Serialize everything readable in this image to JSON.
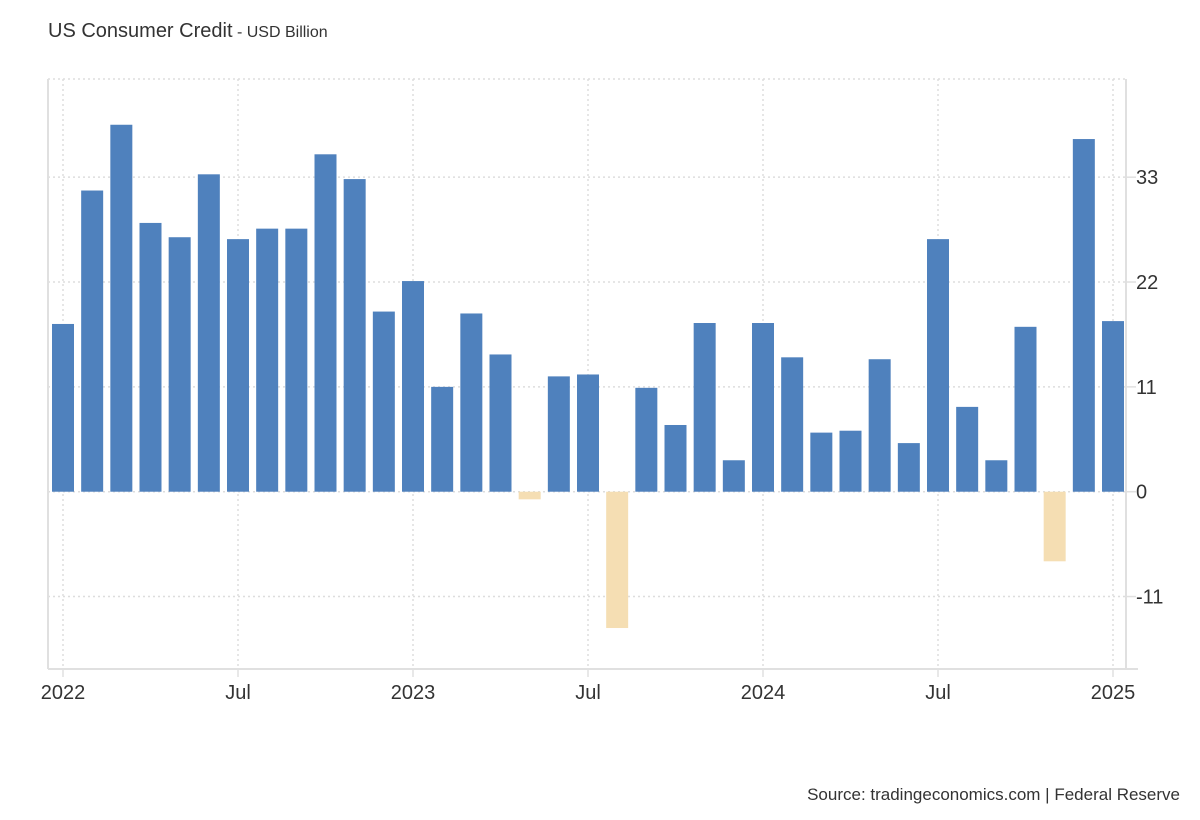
{
  "chart_data": {
    "type": "bar",
    "title": "US Consumer Credit",
    "subtitle": "USD Billion",
    "x_start": "2022-01",
    "x_frequency": "monthly",
    "categories": [
      "2022-01",
      "2022-02",
      "2022-03",
      "2022-04",
      "2022-05",
      "2022-06",
      "2022-07",
      "2022-08",
      "2022-09",
      "2022-10",
      "2022-11",
      "2022-12",
      "2023-01",
      "2023-02",
      "2023-03",
      "2023-04",
      "2023-05",
      "2023-06",
      "2023-07",
      "2023-08",
      "2023-09",
      "2023-10",
      "2023-11",
      "2023-12",
      "2024-01",
      "2024-02",
      "2024-03",
      "2024-04",
      "2024-05",
      "2024-06",
      "2024-07",
      "2024-08",
      "2024-09",
      "2024-10",
      "2024-11",
      "2024-12",
      "2025-01"
    ],
    "values": [
      17.6,
      31.6,
      38.5,
      28.2,
      26.7,
      33.3,
      26.5,
      27.6,
      27.6,
      35.4,
      32.8,
      18.9,
      22.1,
      11.0,
      18.7,
      14.4,
      -0.8,
      12.1,
      12.3,
      -14.3,
      10.9,
      7.0,
      17.7,
      3.3,
      17.7,
      14.1,
      6.2,
      6.4,
      13.9,
      5.1,
      26.5,
      8.9,
      3.3,
      17.3,
      -7.3,
      37.0,
      17.9
    ],
    "x_tick_labels": [
      {
        "label": "2022",
        "month": "2022-01"
      },
      {
        "label": "Jul",
        "month": "2022-07"
      },
      {
        "label": "2023",
        "month": "2023-01"
      },
      {
        "label": "Jul",
        "month": "2023-07"
      },
      {
        "label": "2024",
        "month": "2024-01"
      },
      {
        "label": "Jul",
        "month": "2024-07"
      },
      {
        "label": "2025",
        "month": "2025-01"
      }
    ],
    "y_ticks": [
      -11,
      0,
      11,
      22,
      33
    ],
    "ylim": [
      -18.6,
      43.3
    ],
    "y_axis_side": "right",
    "grid": true,
    "colors": {
      "positive": "#4f81bd",
      "negative": "#f5deb3",
      "grid": "#dddddd",
      "axis": "#e0e0e0"
    }
  },
  "source": "Source: tradingeconomics.com | Federal Reserve"
}
